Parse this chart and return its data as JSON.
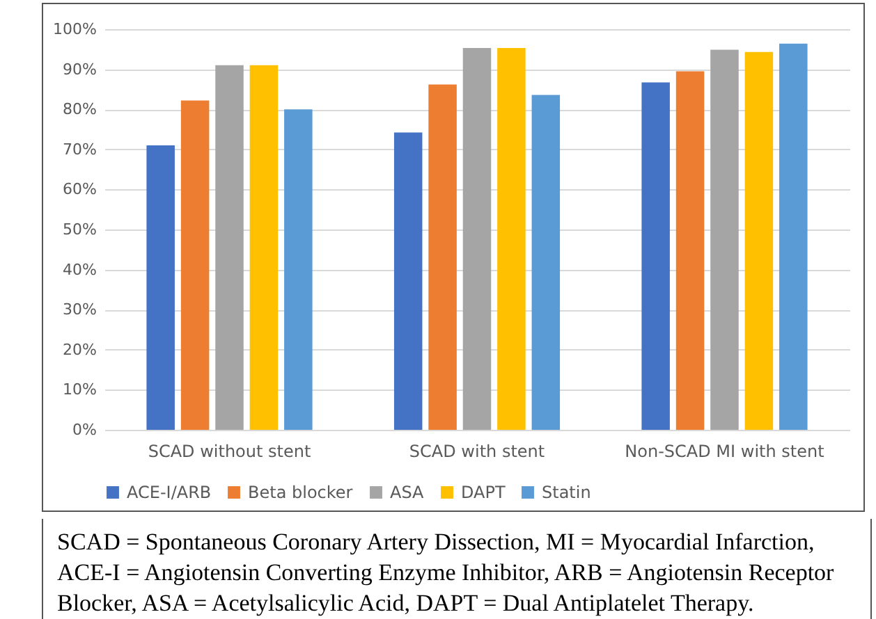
{
  "chart_data": {
    "type": "bar",
    "categories": [
      "SCAD without stent",
      "SCAD with stent",
      "Non-SCAD MI with stent"
    ],
    "series": [
      {
        "name": "ACE-I/ARB",
        "color": "#4472c4",
        "values": [
          71,
          74.2,
          86.7
        ]
      },
      {
        "name": "Beta blocker",
        "color": "#ed7d31",
        "values": [
          82.2,
          86.2,
          89.5
        ]
      },
      {
        "name": "ASA",
        "color": "#a5a5a5",
        "values": [
          91,
          95.3,
          94.9
        ]
      },
      {
        "name": "DAPT",
        "color": "#ffc000",
        "values": [
          91,
          95.3,
          94.3
        ]
      },
      {
        "name": "Statin",
        "color": "#5b9bd5",
        "values": [
          80,
          83.6,
          96.4
        ]
      }
    ],
    "ylim": [
      0,
      100
    ],
    "yticks": [
      {
        "value": 0,
        "label": "0%"
      },
      {
        "value": 10,
        "label": "10%"
      },
      {
        "value": 20,
        "label": "20%"
      },
      {
        "value": 30,
        "label": "30%"
      },
      {
        "value": 40,
        "label": "40%"
      },
      {
        "value": 50,
        "label": "50%"
      },
      {
        "value": 60,
        "label": "60%"
      },
      {
        "value": 70,
        "label": "70%"
      },
      {
        "value": 80,
        "label": "80%"
      },
      {
        "value": 90,
        "label": "90%"
      },
      {
        "value": 100,
        "label": "100%"
      }
    ],
    "grid": "y",
    "legend": "bottom",
    "annotations": [
      "SCAD = Spontaneous Coronary Artery Dissection, MI = Myocardial Infarction, ACE-I = Angiotensin Converting Enzyme Inhibitor, ARB = Angiotensin Receptor Blocker, ASA = Acetylsalicylic Acid, DAPT = Dual Antiplatelet Therapy."
    ]
  }
}
